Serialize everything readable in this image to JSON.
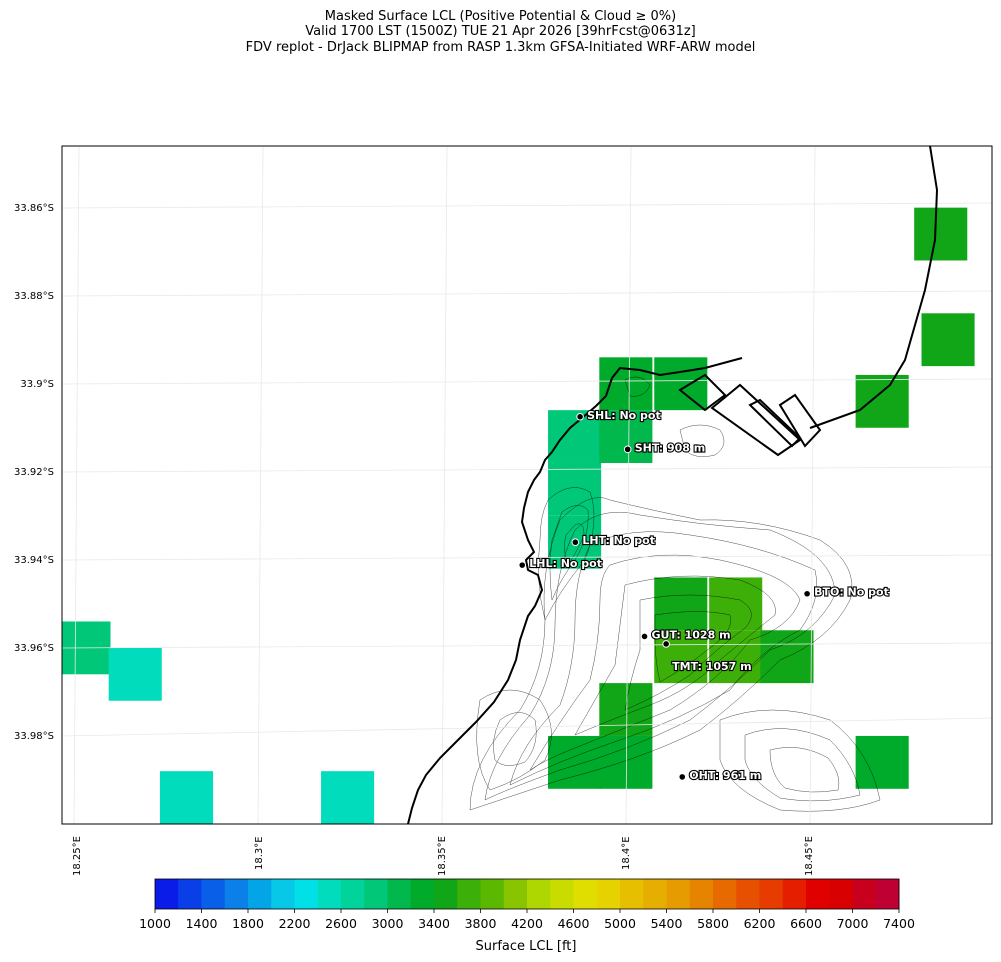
{
  "header": {
    "line1": "Masked Surface LCL (Positive Potential & Cloud ≥ 0%)",
    "line2": "Valid 1700 LST (1500Z) TUE 21 Apr 2026 [39hrFcst@0631z]",
    "line3": "FDV replot - DrJack BLIPMAP from RASP 1.3km GFSA-Initiated WRF-ARW model"
  },
  "chart_data": {
    "type": "heatmap",
    "title": "Masked Surface LCL (Positive Potential & Cloud ≥ 0%)",
    "lat_ticks": [
      "33.86°S",
      "33.88°S",
      "33.9°S",
      "33.92°S",
      "33.94°S",
      "33.96°S",
      "33.98°S"
    ],
    "lat_values": [
      -33.86,
      -33.88,
      -33.9,
      -33.92,
      -33.94,
      -33.96,
      -33.98
    ],
    "lon_ticks": [
      "18.25°E",
      "18.3°E",
      "18.35°E",
      "18.4°E",
      "18.45°E"
    ],
    "lon_values": [
      18.25,
      18.3,
      18.35,
      18.4,
      18.45
    ],
    "lon_range": [
      18.246,
      18.5
    ],
    "lat_range": [
      -34.0,
      -33.846
    ],
    "grid_cells": [
      {
        "lon": 18.4,
        "lat": -33.9,
        "lcl_ft": 3200
      },
      {
        "lon": 18.415,
        "lat": -33.9,
        "lcl_ft": 3300
      },
      {
        "lon": 18.386,
        "lat": -33.912,
        "lcl_ft": 2800
      },
      {
        "lon": 18.4,
        "lat": -33.912,
        "lcl_ft": 3000
      },
      {
        "lon": 18.386,
        "lat": -33.924,
        "lcl_ft": 2800
      },
      {
        "lon": 18.386,
        "lat": -33.936,
        "lcl_ft": 2900
      },
      {
        "lon": 18.415,
        "lat": -33.95,
        "lcl_ft": 3500
      },
      {
        "lon": 18.43,
        "lat": -33.95,
        "lcl_ft": 3600
      },
      {
        "lon": 18.415,
        "lat": -33.962,
        "lcl_ft": 3700
      },
      {
        "lon": 18.43,
        "lat": -33.962,
        "lcl_ft": 3600
      },
      {
        "lon": 18.444,
        "lat": -33.962,
        "lcl_ft": 3400
      },
      {
        "lon": 18.4,
        "lat": -33.974,
        "lcl_ft": 3400
      },
      {
        "lon": 18.386,
        "lat": -33.986,
        "lcl_ft": 3200
      },
      {
        "lon": 18.4,
        "lat": -33.986,
        "lcl_ft": 3300
      },
      {
        "lon": 18.47,
        "lat": -33.986,
        "lcl_ft": 3200
      },
      {
        "lon": 18.252,
        "lat": -33.96,
        "lcl_ft": 2800
      },
      {
        "lon": 18.266,
        "lat": -33.966,
        "lcl_ft": 2500
      },
      {
        "lon": 18.28,
        "lat": -33.994,
        "lcl_ft": 2500
      },
      {
        "lon": 18.324,
        "lat": -33.994,
        "lcl_ft": 2500
      },
      {
        "lon": 18.486,
        "lat": -33.866,
        "lcl_ft": 3400
      },
      {
        "lon": 18.488,
        "lat": -33.89,
        "lcl_ft": 3400
      },
      {
        "lon": 18.47,
        "lat": -33.904,
        "lcl_ft": 3500
      }
    ],
    "stations": [
      {
        "code": "SHL",
        "label": "SHL: No pot",
        "lon": 18.3875,
        "lat": -33.9075
      },
      {
        "code": "SHT",
        "label": "SHT: 908 m",
        "lon": 18.4005,
        "lat": -33.9149
      },
      {
        "code": "LHT",
        "label": "LHT: No pot",
        "lon": 18.3862,
        "lat": -33.936
      },
      {
        "code": "LHL",
        "label": "LHL: No pot",
        "lon": 18.3717,
        "lat": -33.9412
      },
      {
        "code": "BTO",
        "label": "BTO: No pot",
        "lon": 18.4495,
        "lat": -33.9477
      },
      {
        "code": "GUT",
        "label": "GUT: 1028 m",
        "lon": 18.4051,
        "lat": -33.9574
      },
      {
        "code": "TMT",
        "label": "TMT: 1057 m",
        "lon": 18.411,
        "lat": -33.9591
      },
      {
        "code": "OHT",
        "label": "OHT: 961 m",
        "lon": 18.4154,
        "lat": -33.9893
      }
    ],
    "colorbar": {
      "label": "Surface LCL [ft]",
      "ticks": [
        "1000",
        "1400",
        "1800",
        "2200",
        "2600",
        "3000",
        "3400",
        "3800",
        "4200",
        "4600",
        "5000",
        "5400",
        "5800",
        "6200",
        "6600",
        "7000",
        "7400"
      ],
      "min": 1000,
      "max": 7400,
      "step": 200,
      "colors": [
        "#0a1ce8",
        "#0a3fe8",
        "#0a5fe8",
        "#0a80e8",
        "#03a5e6",
        "#07c8e6",
        "#00e0e6",
        "#00dcbc",
        "#00d49a",
        "#00c878",
        "#00b84c",
        "#00aa2a",
        "#10a618",
        "#3cb008",
        "#5ab800",
        "#88c400",
        "#aed600",
        "#c8dc00",
        "#e0de00",
        "#e6d200",
        "#e6c000",
        "#e6ae00",
        "#e69c00",
        "#e68400",
        "#e66a00",
        "#e65000",
        "#e63c00",
        "#e61e00",
        "#e00000",
        "#d80000",
        "#c8001e",
        "#be0032"
      ]
    }
  }
}
